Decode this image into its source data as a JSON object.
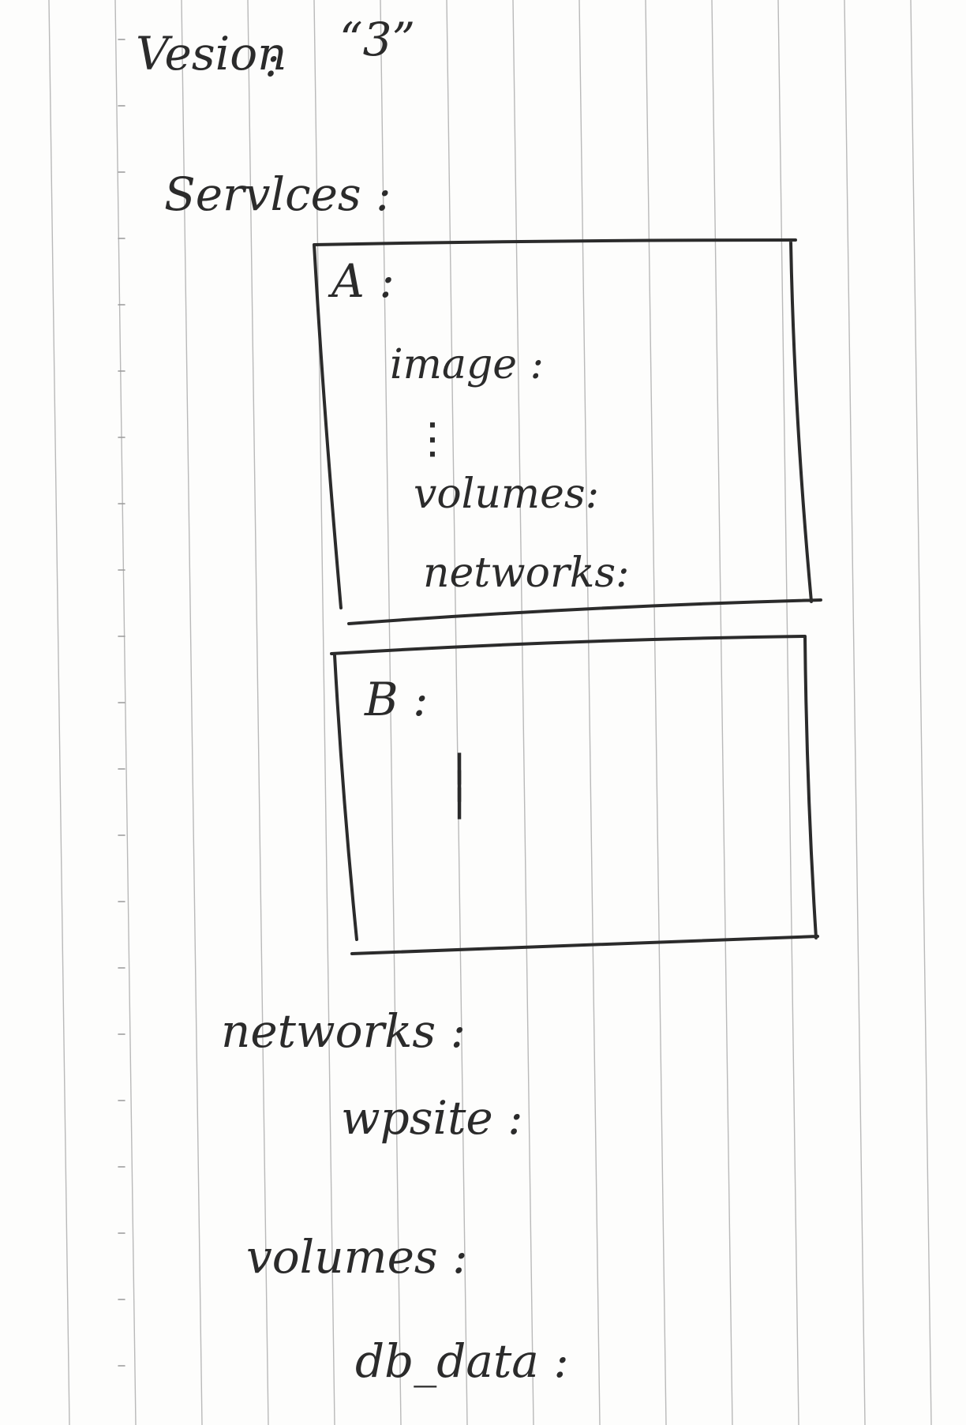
{
  "document": {
    "version_line": {
      "key": "Vesion",
      "sep": ":",
      "value": "“3”"
    },
    "services_label": "Servlces :",
    "service_a": {
      "name": "A :",
      "fields": [
        {
          "label": "image :"
        },
        {
          "label": "volumes:"
        },
        {
          "label": "networks:"
        }
      ]
    },
    "service_b": {
      "name": "B :"
    },
    "networks_section": {
      "label": "networks :",
      "child": "wpsite :"
    },
    "volumes_section": {
      "label": "volumes :",
      "child": "db_data :"
    }
  },
  "colors": {
    "ink": "#2b2b2b",
    "ruling": "#b9b9b9",
    "paper": "#fdfdfc"
  }
}
